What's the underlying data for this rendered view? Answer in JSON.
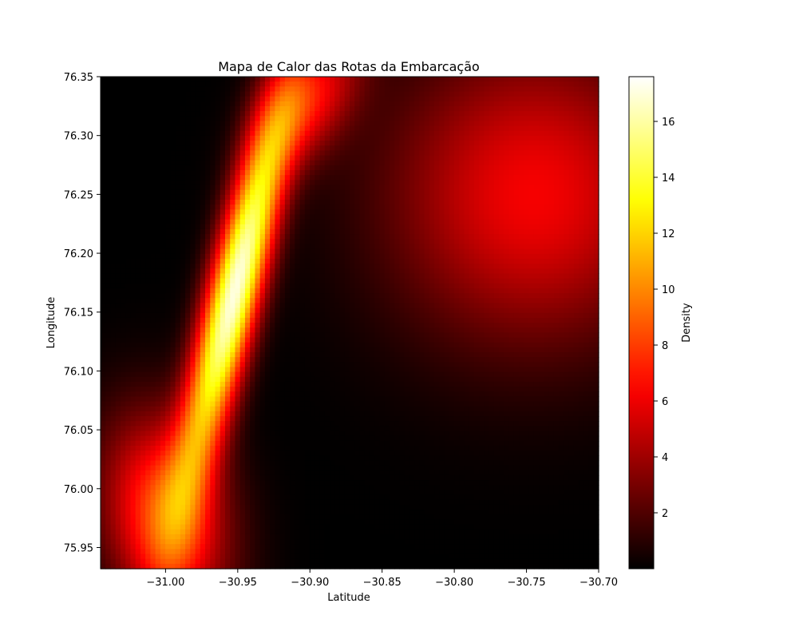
{
  "chart_data": {
    "type": "heatmap",
    "title": "Mapa de Calor das Rotas da Embarcação",
    "xlabel": "Latitude",
    "ylabel": "Longitude",
    "colorbar_label": "Density",
    "colormap": "hot",
    "colormap_stops": [
      "#000000",
      "#ff0000",
      "#ffff00",
      "#ffffff"
    ],
    "xlim": [
      -31.045,
      -30.7
    ],
    "ylim": [
      75.932,
      76.35
    ],
    "clim": [
      0.0,
      17.6
    ],
    "grid": [
      100,
      100
    ],
    "xticks": [
      {
        "value": -31.0,
        "label": "−31.00"
      },
      {
        "value": -30.95,
        "label": "−30.95"
      },
      {
        "value": -30.9,
        "label": "−30.90"
      },
      {
        "value": -30.85,
        "label": "−30.85"
      },
      {
        "value": -30.8,
        "label": "−30.80"
      },
      {
        "value": -30.75,
        "label": "−30.75"
      },
      {
        "value": -30.7,
        "label": "−30.70"
      }
    ],
    "yticks": [
      {
        "value": 75.95,
        "label": "75.95"
      },
      {
        "value": 76.0,
        "label": "76.00"
      },
      {
        "value": 76.05,
        "label": "76.05"
      },
      {
        "value": 76.1,
        "label": "76.10"
      },
      {
        "value": 76.15,
        "label": "76.15"
      },
      {
        "value": 76.2,
        "label": "76.20"
      },
      {
        "value": 76.25,
        "label": "76.25"
      },
      {
        "value": 76.3,
        "label": "76.30"
      },
      {
        "value": 76.35,
        "label": "76.35"
      }
    ],
    "colorbar_ticks": [
      {
        "value": 2,
        "label": "2"
      },
      {
        "value": 4,
        "label": "4"
      },
      {
        "value": 6,
        "label": "6"
      },
      {
        "value": 8,
        "label": "8"
      },
      {
        "value": 10,
        "label": "10"
      },
      {
        "value": 12,
        "label": "12"
      },
      {
        "value": 14,
        "label": "14"
      },
      {
        "value": 16,
        "label": "16"
      }
    ],
    "density_components": [
      {
        "x": -30.952,
        "y": 76.168,
        "weight": 17.0,
        "sx": 0.025,
        "sy": 0.11,
        "rho": 0.85
      },
      {
        "x": -30.9,
        "y": 76.33,
        "weight": 6.0,
        "sx": 0.025,
        "sy": 0.04,
        "rho": 0.5
      },
      {
        "x": -31.0,
        "y": 75.975,
        "weight": 8.5,
        "sx": 0.03,
        "sy": 0.06,
        "rho": -0.2
      },
      {
        "x": -30.745,
        "y": 76.25,
        "weight": 6.2,
        "sx": 0.07,
        "sy": 0.09,
        "rho": 0.0
      }
    ]
  }
}
